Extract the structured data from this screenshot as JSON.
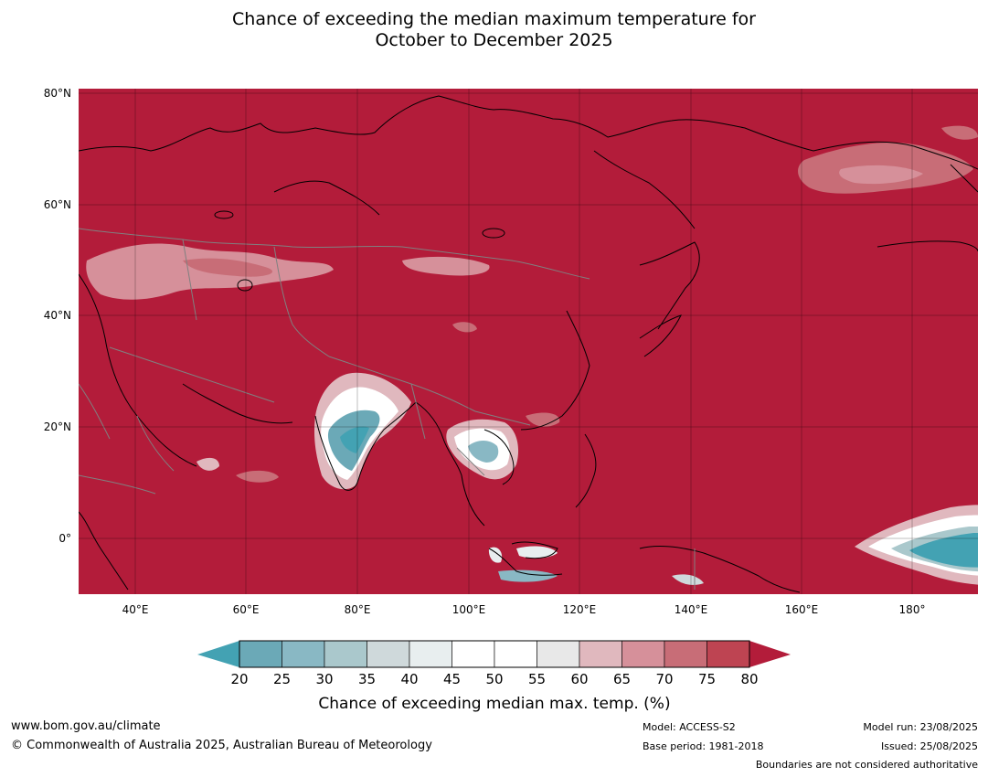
{
  "title": {
    "line1": "Chance of exceeding the median maximum temperature for",
    "line2": "October to December 2025"
  },
  "map": {
    "lat_labels": [
      "80°N",
      "60°N",
      "40°N",
      "20°N",
      "0°"
    ],
    "lon_labels": [
      "40°E",
      "60°E",
      "80°E",
      "100°E",
      "120°E",
      "140°E",
      "160°E",
      "180°"
    ]
  },
  "colorbar": {
    "ticks": [
      "20",
      "25",
      "30",
      "35",
      "40",
      "45",
      "50",
      "55",
      "60",
      "65",
      "70",
      "75",
      "80"
    ],
    "colors": [
      "#6ba9b7",
      "#89b8c4",
      "#aac8cc",
      "#cfd9db",
      "#e8eeef",
      "#ffffff",
      "#ffffff",
      "#e8e8e8",
      "#e0b8be",
      "#d6909a",
      "#c86d77",
      "#be4452"
    ],
    "under_color": "#43a2b3",
    "over_color": "#b31c3a",
    "label": "Chance of exceeding median max. temp. (%)"
  },
  "footer": {
    "website": "www.bom.gov.au/climate",
    "copyright": "© Commonwealth of Australia 2025, Australian Bureau of Meteorology",
    "model": "Model: ACCESS-S2",
    "base_period": "Base period: 1981-2018",
    "model_run": "Model run: 23/08/2025",
    "issued": "Issued: 25/08/2025",
    "boundaries": "Boundaries are not considered authoritative"
  },
  "colors": {
    "above_median": "#b31c3a",
    "below_median": "#43a2b3"
  }
}
